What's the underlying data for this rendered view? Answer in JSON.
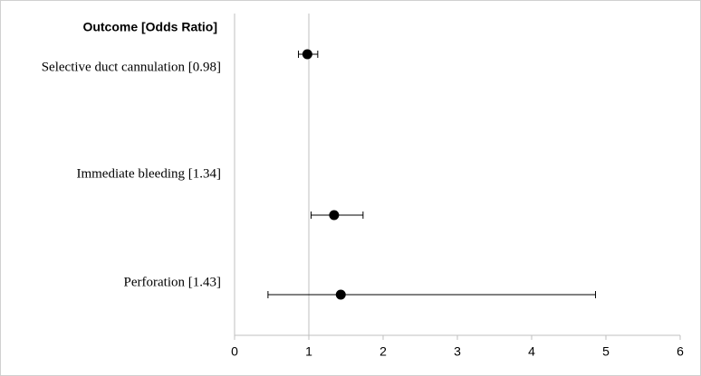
{
  "chart_data": {
    "type": "forest",
    "ylabel": "Outcome [Odds Ratio]",
    "categories": [
      "Selective duct cannulation [0.98]",
      "Immediate bleeding [1.34]",
      "Perforation [1.43]"
    ],
    "values": [
      0.98,
      1.34,
      1.43
    ],
    "ci_lower": [
      0.86,
      1.03,
      0.45
    ],
    "ci_upper": [
      1.12,
      1.73,
      4.86
    ],
    "xlim": [
      0,
      6
    ],
    "xticks": [
      0,
      1,
      2,
      3,
      4,
      5,
      6
    ],
    "reference_line": 1,
    "color": "#000000"
  }
}
